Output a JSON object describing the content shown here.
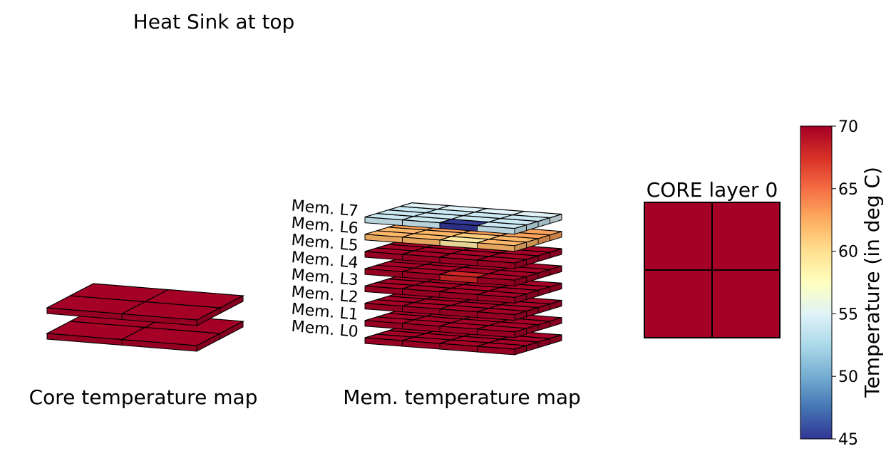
{
  "figure": {
    "title": "Heat Sink at top",
    "core_caption": "Core temperature map",
    "mem_caption": "Mem. temperature map",
    "core_layer_title": "CORE layer 0"
  },
  "colors": {
    "hot": "#a50026",
    "edge": "#000000",
    "background": "#ffffff"
  },
  "chart_data": [
    {
      "type": "heatmap",
      "name_label": "Core temperature map",
      "layers": [
        {
          "label": "",
          "grid": [
            [
              70,
              70
            ],
            [
              70,
              70
            ]
          ]
        },
        {
          "label": "",
          "grid": [
            [
              70,
              70
            ],
            [
              70,
              70
            ]
          ]
        }
      ]
    },
    {
      "type": "heatmap",
      "name_label": "Mem. temperature map",
      "layers": [
        {
          "label": "Mem. L0",
          "grid": [
            [
              70,
              70,
              70,
              70
            ],
            [
              70,
              70,
              70,
              70
            ],
            [
              70,
              70,
              70,
              70
            ],
            [
              70,
              70,
              70,
              70
            ]
          ]
        },
        {
          "label": "Mem. L1",
          "grid": [
            [
              70,
              70,
              70,
              70
            ],
            [
              70,
              70,
              70,
              70
            ],
            [
              70,
              70,
              70,
              70
            ],
            [
              70,
              70,
              70,
              70
            ]
          ]
        },
        {
          "label": "Mem. L2",
          "grid": [
            [
              70,
              70,
              70,
              70
            ],
            [
              70,
              70,
              70,
              70
            ],
            [
              70,
              70,
              70,
              70
            ],
            [
              70,
              70,
              70,
              70
            ]
          ]
        },
        {
          "label": "Mem. L3",
          "grid": [
            [
              70,
              70,
              70,
              70
            ],
            [
              70,
              70,
              70,
              70
            ],
            [
              70,
              70,
              70,
              70
            ],
            [
              70,
              70,
              70,
              70
            ]
          ]
        },
        {
          "label": "Mem. L4",
          "grid": [
            [
              70,
              70,
              68,
              70
            ],
            [
              70,
              70,
              70,
              70
            ],
            [
              70,
              70,
              70,
              70
            ],
            [
              70,
              70,
              70,
              70
            ]
          ]
        },
        {
          "label": "Mem. L5",
          "grid": [
            [
              70,
              70,
              70,
              70
            ],
            [
              70,
              70,
              70,
              70
            ],
            [
              70,
              70,
              70,
              70
            ],
            [
              70,
              70,
              70,
              70
            ]
          ]
        },
        {
          "label": "Mem. L6",
          "grid": [
            [
              62,
              62,
              59,
              62
            ],
            [
              62,
              62,
              61,
              62
            ],
            [
              63,
              63,
              63,
              63
            ],
            [
              63,
              63,
              63,
              63
            ]
          ]
        },
        {
          "label": "Mem. L7",
          "grid": [
            [
              54,
              54,
              45,
              54
            ],
            [
              54,
              54,
              54,
              54
            ],
            [
              54,
              54,
              54,
              54
            ],
            [
              55,
              55,
              55,
              55
            ]
          ]
        }
      ]
    },
    {
      "type": "heatmap",
      "title": "CORE layer 0",
      "grid": [
        [
          70,
          70
        ],
        [
          70,
          70
        ]
      ]
    }
  ],
  "colorbar": {
    "label": "Temperature (in deg C)",
    "min": 45,
    "max": 70,
    "ticks": [
      45,
      50,
      55,
      60,
      65,
      70
    ],
    "colormap": [
      "#313695",
      "#4575b4",
      "#74add1",
      "#abd9e9",
      "#e0f3f8",
      "#ffffbf",
      "#fee090",
      "#fdae61",
      "#f46d43",
      "#d73027",
      "#a50026"
    ]
  }
}
